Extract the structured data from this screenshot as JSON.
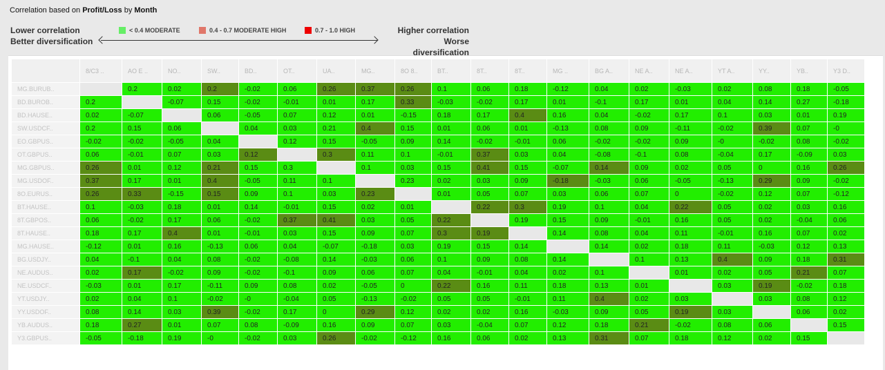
{
  "title": {
    "prefix": "Correlation based on ",
    "metric": "Profit/Loss",
    "mid": " by ",
    "period": "Month"
  },
  "legend": {
    "left_line1": "Lower correlation",
    "left_line2": "Better diversification",
    "right_line1": "Higher correlation",
    "right_line2": "Worse diversification",
    "keys": [
      {
        "label": "< 0.4 MODERATE",
        "color": "#66ee66"
      },
      {
        "label": "0.4 - 0.7 MODERATE HIGH",
        "color": "#e0776a"
      },
      {
        "label": "0.7 - 1.0 HIGH",
        "color": "#ee0000"
      }
    ]
  },
  "colors": {
    "moderate": "#22ee00",
    "moderate_high": "#5a8c14",
    "diagonal": "#e8e8e8"
  },
  "columns": [
    "8/C3 ..",
    "AO E ..",
    "NO..",
    "SW..",
    "BD..",
    "OT..",
    "UA..",
    "MG..",
    "8O 8..",
    "BT..",
    "8T..",
    "8T..",
    "MG ..",
    "BG A..",
    "NE A..",
    "NE A..",
    "YT A..",
    "YY..",
    "YB..",
    "Y3 D.."
  ],
  "rows": [
    {
      "label": "MG.BURUB..",
      "values": [
        null,
        "0.2",
        "0.02",
        "0.2",
        "-0.02",
        "0.06",
        "0.26",
        "0.37",
        "0.26",
        "0.1",
        "0.06",
        "0.18",
        "-0.12",
        "0.04",
        "0.02",
        "-0.03",
        "0.02",
        "0.08",
        "0.18",
        "-0.05"
      ]
    },
    {
      "label": "BD.BUROB..",
      "values": [
        "0.2",
        null,
        "-0.07",
        "0.15",
        "-0.02",
        "-0.01",
        "0.01",
        "0.17",
        "0.33",
        "-0.03",
        "-0.02",
        "0.17",
        "0.01",
        "-0.1",
        "0.17",
        "0.01",
        "0.04",
        "0.14",
        "0.27",
        "-0.18"
      ]
    },
    {
      "label": "BD.HAUSE..",
      "values": [
        "0.02",
        "-0.07",
        null,
        "0.06",
        "-0.05",
        "0.07",
        "0.12",
        "0.01",
        "-0.15",
        "0.18",
        "0.17",
        "0.4",
        "0.16",
        "0.04",
        "-0.02",
        "0.17",
        "0.1",
        "0.03",
        "0.01",
        "0.19"
      ]
    },
    {
      "label": "SW.USDCF..",
      "values": [
        "0.2",
        "0.15",
        "0.06",
        null,
        "0.04",
        "0.03",
        "0.21",
        "0.4",
        "0.15",
        "0.01",
        "0.06",
        "0.01",
        "-0.13",
        "0.08",
        "0.09",
        "-0.11",
        "-0.02",
        "0.39",
        "0.07",
        "-0"
      ]
    },
    {
      "label": "EO.GBPUS..",
      "values": [
        "-0.02",
        "-0.02",
        "-0.05",
        "0.04",
        null,
        "0.12",
        "0.15",
        "-0.05",
        "0.09",
        "0.14",
        "-0.02",
        "-0.01",
        "0.06",
        "-0.02",
        "-0.02",
        "0.09",
        "-0",
        "-0.02",
        "0.08",
        "-0.02"
      ]
    },
    {
      "label": "OT.GBPUS..",
      "values": [
        "0.06",
        "-0.01",
        "0.07",
        "0.03",
        "0.12",
        null,
        "0.3",
        "0.11",
        "0.1",
        "-0.01",
        "0.37",
        "0.03",
        "0.04",
        "-0.08",
        "-0.1",
        "0.08",
        "-0.04",
        "0.17",
        "-0.09",
        "0.03"
      ]
    },
    {
      "label": "MG.GBPUS..",
      "values": [
        "0.26",
        "0.01",
        "0.12",
        "0.21",
        "0.15",
        "0.3",
        null,
        "0.1",
        "0.03",
        "0.15",
        "0.41",
        "0.15",
        "-0.07",
        "0.14",
        "0.09",
        "0.02",
        "0.05",
        "0",
        "0.16",
        "0.26"
      ]
    },
    {
      "label": "MG.USDOF..",
      "values": [
        "0.37",
        "0.17",
        "0.01",
        "0.4",
        "-0.05",
        "0.11",
        "0.1",
        null,
        "0.23",
        "0.02",
        "0.03",
        "0.09",
        "-0.18",
        "-0.03",
        "0.06",
        "-0.05",
        "-0.13",
        "0.29",
        "0.09",
        "-0.02"
      ]
    },
    {
      "label": "8O.EURUS..",
      "values": [
        "0.26",
        "0.33",
        "-0.15",
        "0.15",
        "0.09",
        "0.1",
        "0.03",
        "0.23",
        null,
        "0.01",
        "0.05",
        "0.07",
        "0.03",
        "0.06",
        "0.07",
        "0",
        "-0.02",
        "0.12",
        "0.07",
        "-0.12"
      ]
    },
    {
      "label": "BT.HAUSE..",
      "values": [
        "0.1",
        "-0.03",
        "0.18",
        "0.01",
        "0.14",
        "-0.01",
        "0.15",
        "0.02",
        "0.01",
        null,
        "0.22",
        "0.3",
        "0.19",
        "0.1",
        "0.04",
        "0.22",
        "0.05",
        "0.02",
        "0.03",
        "0.16"
      ]
    },
    {
      "label": "8T.GBPOS..",
      "values": [
        "0.06",
        "-0.02",
        "0.17",
        "0.06",
        "-0.02",
        "0.37",
        "0.41",
        "0.03",
        "0.05",
        "0.22",
        null,
        "0.19",
        "0.15",
        "0.09",
        "-0.01",
        "0.16",
        "0.05",
        "0.02",
        "-0.04",
        "0.06"
      ]
    },
    {
      "label": "8T.HAUSE..",
      "values": [
        "0.18",
        "0.17",
        "0.4",
        "0.01",
        "-0.01",
        "0.03",
        "0.15",
        "0.09",
        "0.07",
        "0.3",
        "0.19",
        null,
        "0.14",
        "0.08",
        "0.04",
        "0.11",
        "-0.01",
        "0.16",
        "0.07",
        "0.02"
      ]
    },
    {
      "label": "MG.HAUSE..",
      "values": [
        "-0.12",
        "0.01",
        "0.16",
        "-0.13",
        "0.06",
        "0.04",
        "-0.07",
        "-0.18",
        "0.03",
        "0.19",
        "0.15",
        "0.14",
        null,
        "0.14",
        "0.02",
        "0.18",
        "0.11",
        "-0.03",
        "0.12",
        "0.13"
      ]
    },
    {
      "label": "BG.USDJY..",
      "values": [
        "0.04",
        "-0.1",
        "0.04",
        "0.08",
        "-0.02",
        "-0.08",
        "0.14",
        "-0.03",
        "0.06",
        "0.1",
        "0.09",
        "0.08",
        "0.14",
        null,
        "0.1",
        "0.13",
        "0.4",
        "0.09",
        "0.18",
        "0.31"
      ]
    },
    {
      "label": "NE.AUDUS..",
      "values": [
        "0.02",
        "0.17",
        "-0.02",
        "0.09",
        "-0.02",
        "-0.1",
        "0.09",
        "0.06",
        "0.07",
        "0.04",
        "-0.01",
        "0.04",
        "0.02",
        "0.1",
        null,
        "0.01",
        "0.02",
        "0.05",
        "0.21",
        "0.07"
      ]
    },
    {
      "label": "NE.USDCF..",
      "values": [
        "-0.03",
        "0.01",
        "0.17",
        "-0.11",
        "0.09",
        "0.08",
        "0.02",
        "-0.05",
        "0",
        "0.22",
        "0.16",
        "0.11",
        "0.18",
        "0.13",
        "0.01",
        null,
        "0.03",
        "0.19",
        "-0.02",
        "0.18"
      ]
    },
    {
      "label": "YT.USDJY..",
      "values": [
        "0.02",
        "0.04",
        "0.1",
        "-0.02",
        "-0",
        "-0.04",
        "0.05",
        "-0.13",
        "-0.02",
        "0.05",
        "0.05",
        "-0.01",
        "0.11",
        "0.4",
        "0.02",
        "0.03",
        null,
        "0.03",
        "0.08",
        "0.12"
      ]
    },
    {
      "label": "YY.USDOF..",
      "values": [
        "0.08",
        "0.14",
        "0.03",
        "0.39",
        "-0.02",
        "0.17",
        "0",
        "0.29",
        "0.12",
        "0.02",
        "0.02",
        "0.16",
        "-0.03",
        "0.09",
        "0.05",
        "0.19",
        "0.03",
        null,
        "0.06",
        "0.02"
      ]
    },
    {
      "label": "YB.AUDUS..",
      "values": [
        "0.18",
        "0.27",
        "0.01",
        "0.07",
        "0.08",
        "-0.09",
        "0.16",
        "0.09",
        "0.07",
        "0.03",
        "-0.04",
        "0.07",
        "0.12",
        "0.18",
        "0.21",
        "-0.02",
        "0.08",
        "0.06",
        null,
        "0.15"
      ]
    },
    {
      "label": "Y3.GBPUS..",
      "values": [
        "-0.05",
        "-0.18",
        "0.19",
        "-0",
        "-0.02",
        "0.03",
        "0.26",
        "-0.02",
        "-0.12",
        "0.16",
        "0.06",
        "0.02",
        "0.13",
        "0.31",
        "0.07",
        "0.18",
        "0.12",
        "0.02",
        "0.15",
        null
      ]
    }
  ],
  "dark_cells": [
    [
      0,
      3
    ],
    [
      0,
      6
    ],
    [
      0,
      7
    ],
    [
      0,
      8
    ],
    [
      1,
      8
    ],
    [
      2,
      11
    ],
    [
      3,
      7
    ],
    [
      3,
      17
    ],
    [
      5,
      4
    ],
    [
      5,
      6
    ],
    [
      5,
      10
    ],
    [
      6,
      0
    ],
    [
      6,
      3
    ],
    [
      6,
      10
    ],
    [
      6,
      13
    ],
    [
      6,
      19
    ],
    [
      7,
      0
    ],
    [
      7,
      3
    ],
    [
      7,
      12
    ],
    [
      7,
      17
    ],
    [
      8,
      0
    ],
    [
      8,
      1
    ],
    [
      8,
      3
    ],
    [
      8,
      7
    ],
    [
      9,
      10
    ],
    [
      9,
      11
    ],
    [
      9,
      15
    ],
    [
      10,
      5
    ],
    [
      10,
      6
    ],
    [
      10,
      9
    ],
    [
      11,
      2
    ],
    [
      11,
      9
    ],
    [
      11,
      10
    ],
    [
      13,
      16
    ],
    [
      13,
      19
    ],
    [
      14,
      1
    ],
    [
      14,
      18
    ],
    [
      15,
      9
    ],
    [
      15,
      17
    ],
    [
      16,
      13
    ],
    [
      17,
      3
    ],
    [
      17,
      7
    ],
    [
      17,
      15
    ],
    [
      18,
      1
    ],
    [
      18,
      14
    ],
    [
      19,
      6
    ],
    [
      19,
      13
    ]
  ]
}
